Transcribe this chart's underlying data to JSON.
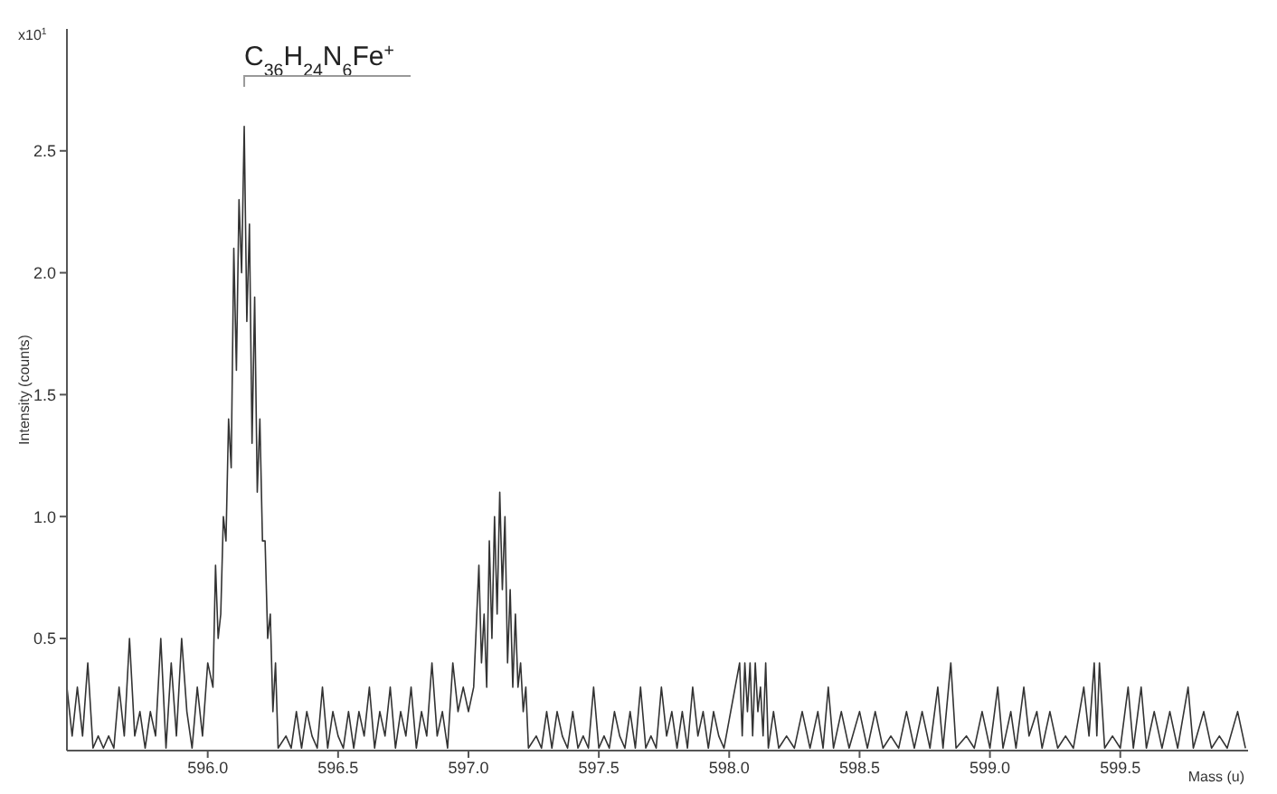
{
  "chart_data": {
    "type": "line",
    "xlabel": "Mass (u)",
    "ylabel": "Intensity (counts)",
    "annotations": [
      "x10$^{1}$",
      "C$_{36}$H$_{24}$N$_{6}$Fe$^{+}$"
    ],
    "xlim": [
      595.46,
      599.99
    ],
    "ylim": [
      0.04,
      3.0
    ],
    "xticks": [
      {
        "value": 596,
        "label": "596.0"
      },
      {
        "value": 596.5,
        "label": "596.5"
      },
      {
        "value": 597,
        "label": "597.0"
      },
      {
        "value": 597.5,
        "label": "597.5"
      },
      {
        "value": 598,
        "label": "598.0"
      },
      {
        "value": 598.5,
        "label": "598.5"
      },
      {
        "value": 599,
        "label": "599.0"
      },
      {
        "value": 599.5,
        "label": "599.5"
      }
    ],
    "yticks": [
      0.5,
      {
        "value": 1,
        "label": "1.0"
      },
      1.5,
      {
        "value": 2,
        "label": "2.0"
      },
      2.5
    ],
    "grid": false,
    "marker": "none",
    "line_style": "solid",
    "series": [
      {
        "color": "#333333",
        "x": [
          595.46,
          595.48,
          595.5,
          595.52,
          595.54,
          595.56,
          595.58,
          595.6,
          595.62,
          595.64,
          595.66,
          595.68,
          595.7,
          595.72,
          595.74,
          595.76,
          595.78,
          595.8,
          595.82,
          595.84,
          595.86,
          595.88,
          595.9,
          595.92,
          595.94,
          595.96,
          595.98,
          596.0,
          596.02,
          596.03,
          596.04,
          596.05,
          596.06,
          596.07,
          596.08,
          596.09,
          596.1,
          596.11,
          596.12,
          596.13,
          596.14,
          596.15,
          596.16,
          596.17,
          596.18,
          596.19,
          596.2,
          596.21,
          596.22,
          596.23,
          596.24,
          596.25,
          596.26,
          596.27,
          596.3,
          596.32,
          596.34,
          596.36,
          596.38,
          596.4,
          596.42,
          596.44,
          596.46,
          596.48,
          596.5,
          596.52,
          596.54,
          596.56,
          596.58,
          596.6,
          596.62,
          596.64,
          596.66,
          596.68,
          596.7,
          596.72,
          596.74,
          596.76,
          596.78,
          596.8,
          596.82,
          596.84,
          596.86,
          596.88,
          596.9,
          596.92,
          596.94,
          596.96,
          596.98,
          597.0,
          597.02,
          597.04,
          597.05,
          597.06,
          597.07,
          597.08,
          597.09,
          597.1,
          597.11,
          597.12,
          597.13,
          597.14,
          597.15,
          597.16,
          597.17,
          597.18,
          597.19,
          597.2,
          597.21,
          597.22,
          597.23,
          597.26,
          597.28,
          597.3,
          597.32,
          597.34,
          597.36,
          597.38,
          597.4,
          597.42,
          597.44,
          597.46,
          597.48,
          597.5,
          597.52,
          597.54,
          597.56,
          597.58,
          597.6,
          597.62,
          597.64,
          597.66,
          597.68,
          597.7,
          597.72,
          597.74,
          597.76,
          597.78,
          597.8,
          597.82,
          597.84,
          597.86,
          597.88,
          597.9,
          597.92,
          597.94,
          597.96,
          597.98,
          598.04,
          598.05,
          598.06,
          598.07,
          598.08,
          598.09,
          598.1,
          598.11,
          598.12,
          598.13,
          598.14,
          598.15,
          598.17,
          598.19,
          598.22,
          598.25,
          598.28,
          598.31,
          598.34,
          598.36,
          598.38,
          598.4,
          598.43,
          598.46,
          598.5,
          598.53,
          598.56,
          598.59,
          598.62,
          598.65,
          598.68,
          598.71,
          598.74,
          598.77,
          598.8,
          598.82,
          598.85,
          598.87,
          598.91,
          598.94,
          598.97,
          599.0,
          599.03,
          599.05,
          599.08,
          599.1,
          599.13,
          599.15,
          599.18,
          599.2,
          599.23,
          599.26,
          599.29,
          599.32,
          599.36,
          599.38,
          599.4,
          599.41,
          599.42,
          599.44,
          599.47,
          599.5,
          599.53,
          599.55,
          599.58,
          599.6,
          599.63,
          599.66,
          599.69,
          599.72,
          599.76,
          599.78,
          599.82,
          599.85,
          599.88,
          599.91,
          599.95,
          599.98
        ],
        "values": [
          0.3,
          0.1,
          0.3,
          0.1,
          0.4,
          0.05,
          0.1,
          0.05,
          0.1,
          0.05,
          0.3,
          0.1,
          0.5,
          0.1,
          0.2,
          0.05,
          0.2,
          0.1,
          0.5,
          0.05,
          0.4,
          0.1,
          0.5,
          0.2,
          0.05,
          0.3,
          0.1,
          0.4,
          0.3,
          0.8,
          0.5,
          0.6,
          1.0,
          0.9,
          1.4,
          1.2,
          2.1,
          1.6,
          2.3,
          2.0,
          2.6,
          1.8,
          2.2,
          1.3,
          1.9,
          1.1,
          1.4,
          0.9,
          0.9,
          0.5,
          0.6,
          0.2,
          0.4,
          0.05,
          0.1,
          0.05,
          0.2,
          0.05,
          0.2,
          0.1,
          0.05,
          0.3,
          0.05,
          0.2,
          0.1,
          0.05,
          0.2,
          0.05,
          0.2,
          0.1,
          0.3,
          0.05,
          0.2,
          0.1,
          0.3,
          0.05,
          0.2,
          0.1,
          0.3,
          0.05,
          0.2,
          0.1,
          0.4,
          0.1,
          0.2,
          0.05,
          0.4,
          0.2,
          0.3,
          0.2,
          0.3,
          0.8,
          0.4,
          0.6,
          0.3,
          0.9,
          0.5,
          1.0,
          0.6,
          1.1,
          0.7,
          1.0,
          0.4,
          0.7,
          0.3,
          0.6,
          0.3,
          0.4,
          0.2,
          0.3,
          0.05,
          0.1,
          0.05,
          0.2,
          0.05,
          0.2,
          0.1,
          0.05,
          0.2,
          0.05,
          0.1,
          0.05,
          0.3,
          0.05,
          0.1,
          0.05,
          0.2,
          0.1,
          0.05,
          0.2,
          0.05,
          0.3,
          0.05,
          0.1,
          0.05,
          0.3,
          0.1,
          0.2,
          0.05,
          0.2,
          0.05,
          0.3,
          0.1,
          0.2,
          0.05,
          0.2,
          0.1,
          0.05,
          0.4,
          0.1,
          0.4,
          0.2,
          0.4,
          0.1,
          0.4,
          0.2,
          0.3,
          0.1,
          0.4,
          0.05,
          0.2,
          0.05,
          0.1,
          0.05,
          0.2,
          0.05,
          0.2,
          0.05,
          0.3,
          0.05,
          0.2,
          0.05,
          0.2,
          0.05,
          0.2,
          0.05,
          0.1,
          0.05,
          0.2,
          0.05,
          0.2,
          0.05,
          0.3,
          0.05,
          0.4,
          0.05,
          0.1,
          0.05,
          0.2,
          0.05,
          0.3,
          0.05,
          0.2,
          0.05,
          0.3,
          0.1,
          0.2,
          0.05,
          0.2,
          0.05,
          0.1,
          0.05,
          0.3,
          0.1,
          0.4,
          0.1,
          0.4,
          0.05,
          0.1,
          0.05,
          0.3,
          0.05,
          0.3,
          0.05,
          0.2,
          0.05,
          0.2,
          0.05,
          0.3,
          0.05,
          0.2,
          0.05,
          0.1,
          0.05,
          0.2,
          0.05
        ]
      }
    ]
  }
}
